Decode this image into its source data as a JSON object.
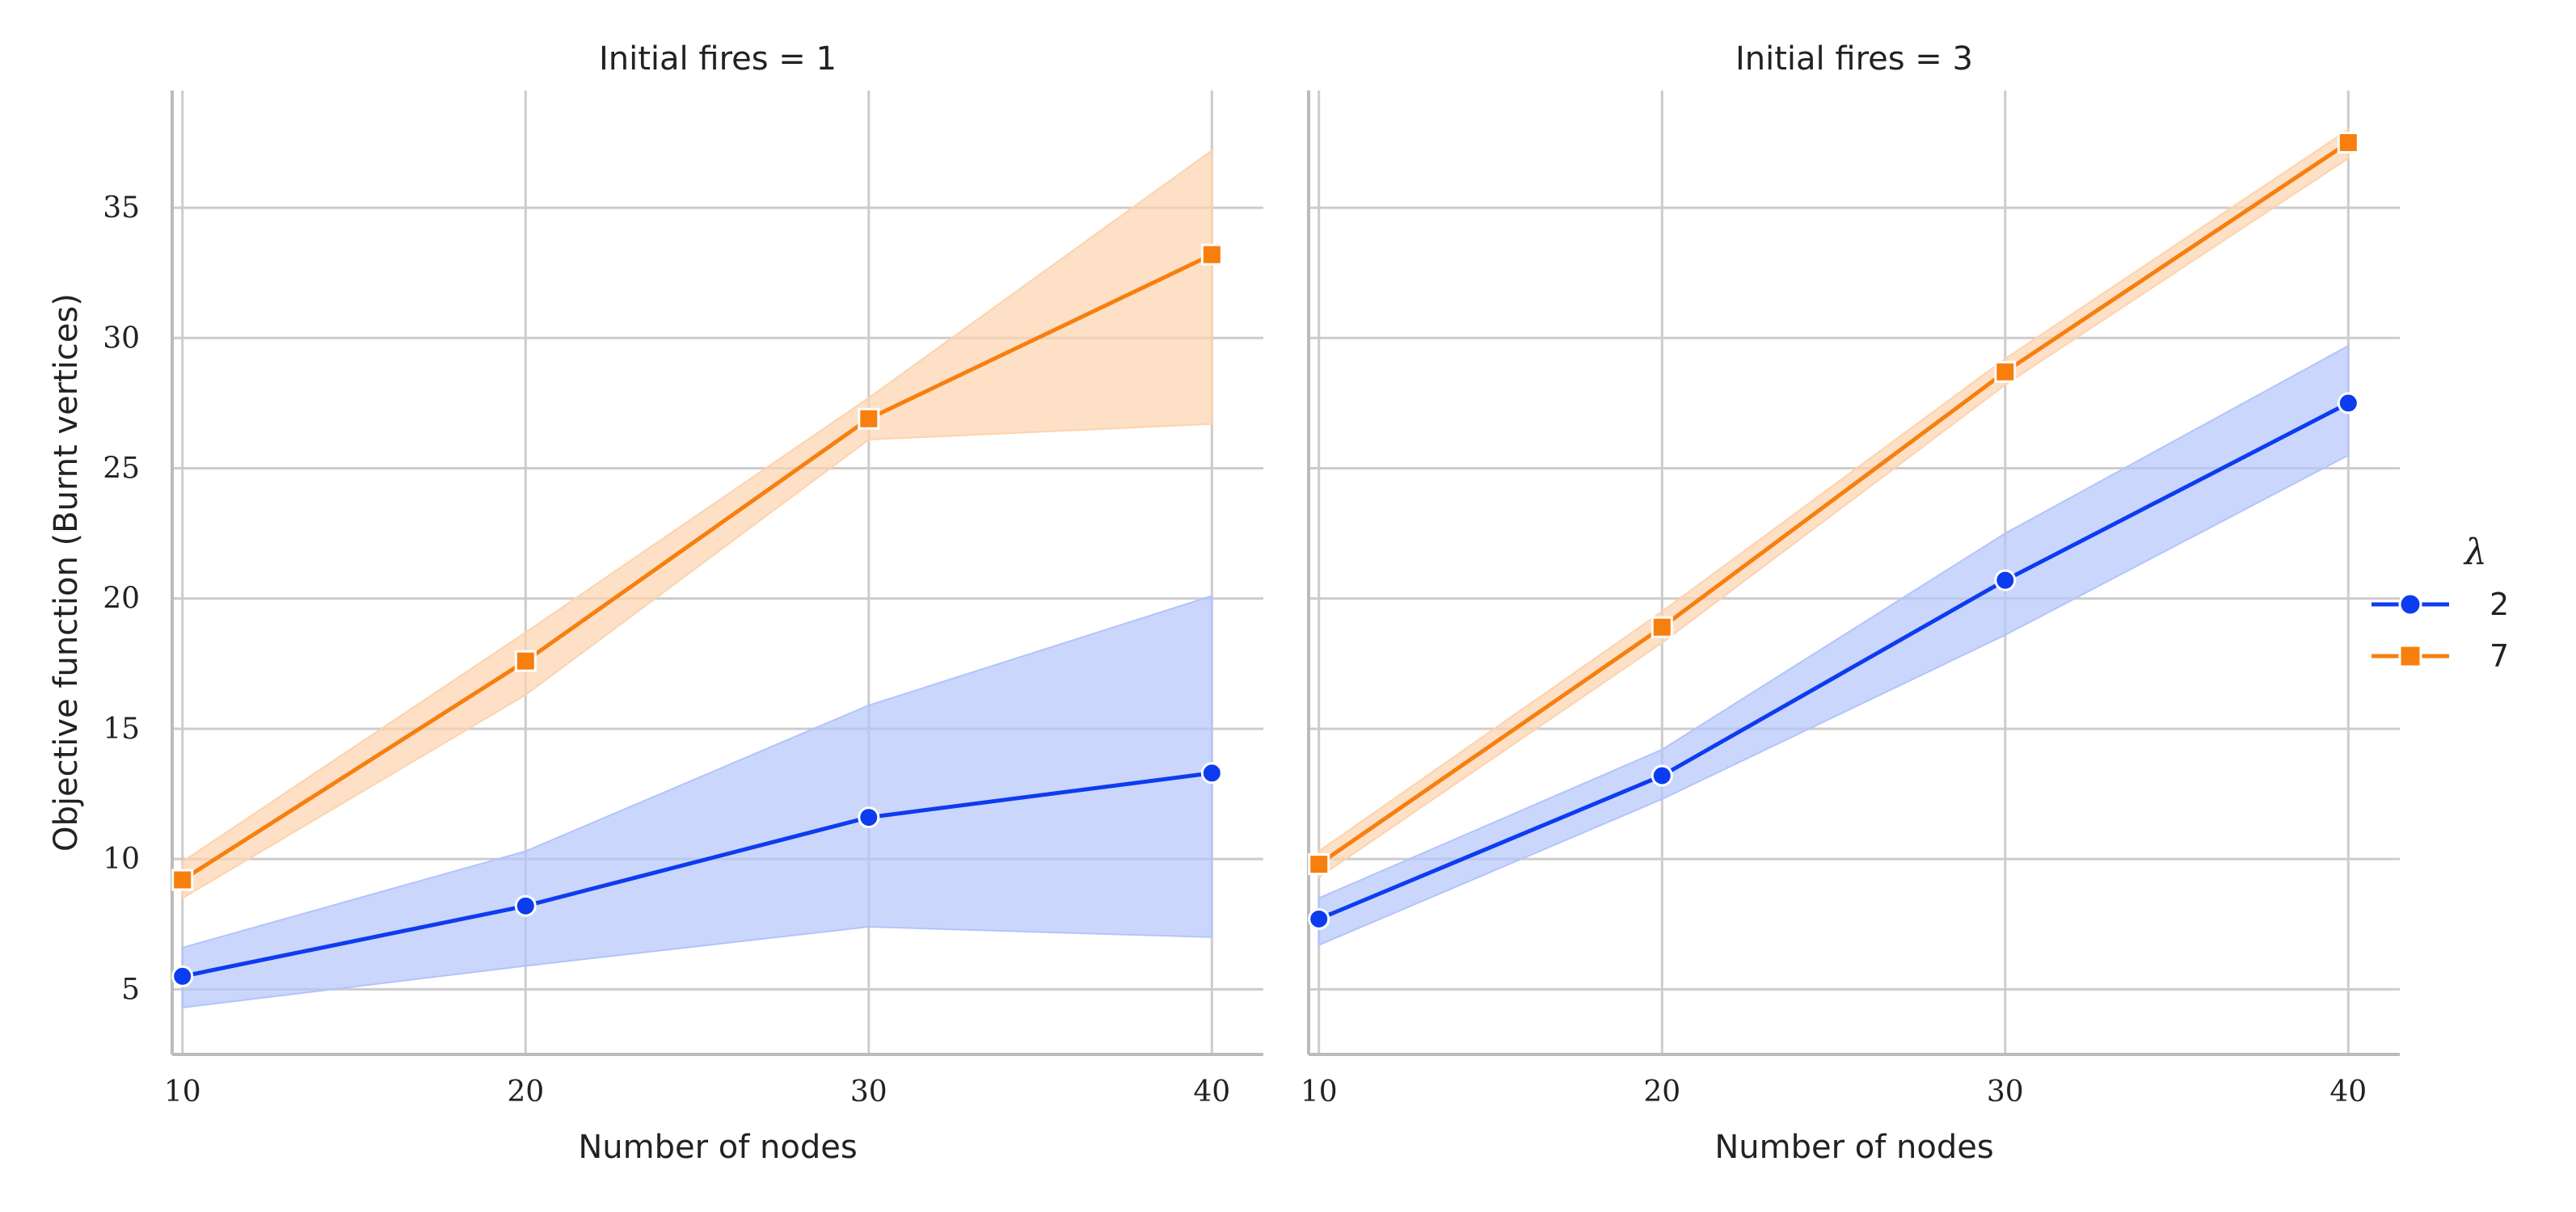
{
  "chart_data": [
    {
      "type": "line",
      "title": "Initial fires = 1",
      "xlabel": "Number of nodes",
      "ylabel": "Objective function (Burnt vertices)",
      "x": [
        10,
        20,
        30,
        40
      ],
      "xticks": [
        "10",
        "20",
        "30",
        "40"
      ],
      "yticks": [
        "5",
        "10",
        "15",
        "20",
        "25",
        "30",
        "35"
      ],
      "xlim": [
        9.7,
        41.5
      ],
      "ylim": [
        2.5,
        39.5
      ],
      "grid": true,
      "series": [
        {
          "name": "2",
          "values": [
            5.5,
            8.2,
            11.6,
            13.3
          ],
          "lower": [
            4.3,
            5.9,
            7.4,
            7.0
          ],
          "upper": [
            6.6,
            10.3,
            15.9,
            20.1
          ]
        },
        {
          "name": "7",
          "values": [
            9.2,
            17.6,
            26.9,
            33.2
          ],
          "lower": [
            8.5,
            16.3,
            26.1,
            26.7
          ],
          "upper": [
            9.9,
            18.7,
            27.7,
            37.2
          ]
        }
      ]
    },
    {
      "type": "line",
      "title": "Initial fires = 3",
      "xlabel": "Number of nodes",
      "ylabel": "",
      "x": [
        10,
        20,
        30,
        40
      ],
      "xticks": [
        "10",
        "20",
        "30",
        "40"
      ],
      "xlim": [
        9.7,
        41.5
      ],
      "ylim": [
        2.5,
        39.5
      ],
      "grid": true,
      "series": [
        {
          "name": "2",
          "values": [
            7.7,
            13.2,
            20.7,
            27.5
          ],
          "lower": [
            6.7,
            12.3,
            18.6,
            25.5
          ],
          "upper": [
            8.5,
            14.2,
            22.5,
            29.7
          ]
        },
        {
          "name": "7",
          "values": [
            9.8,
            18.9,
            28.7,
            37.5
          ],
          "lower": [
            9.3,
            18.3,
            28.2,
            36.9
          ],
          "upper": [
            10.3,
            19.5,
            29.2,
            38.0
          ]
        }
      ]
    }
  ],
  "legend": {
    "title": "λ",
    "placement": "right",
    "items": [
      {
        "label": "2",
        "color": "#0d3cf0",
        "marker": "circle"
      },
      {
        "label": "7",
        "color": "#f77f0e",
        "marker": "square"
      }
    ]
  },
  "colors": {
    "series_2": "#0d3cf0",
    "series_2_band": "#b3c4fb",
    "series_7": "#f77f0e",
    "series_7_band": "#fcd3ae",
    "grid": "#cccccc",
    "spine": "#bbbbbb"
  }
}
